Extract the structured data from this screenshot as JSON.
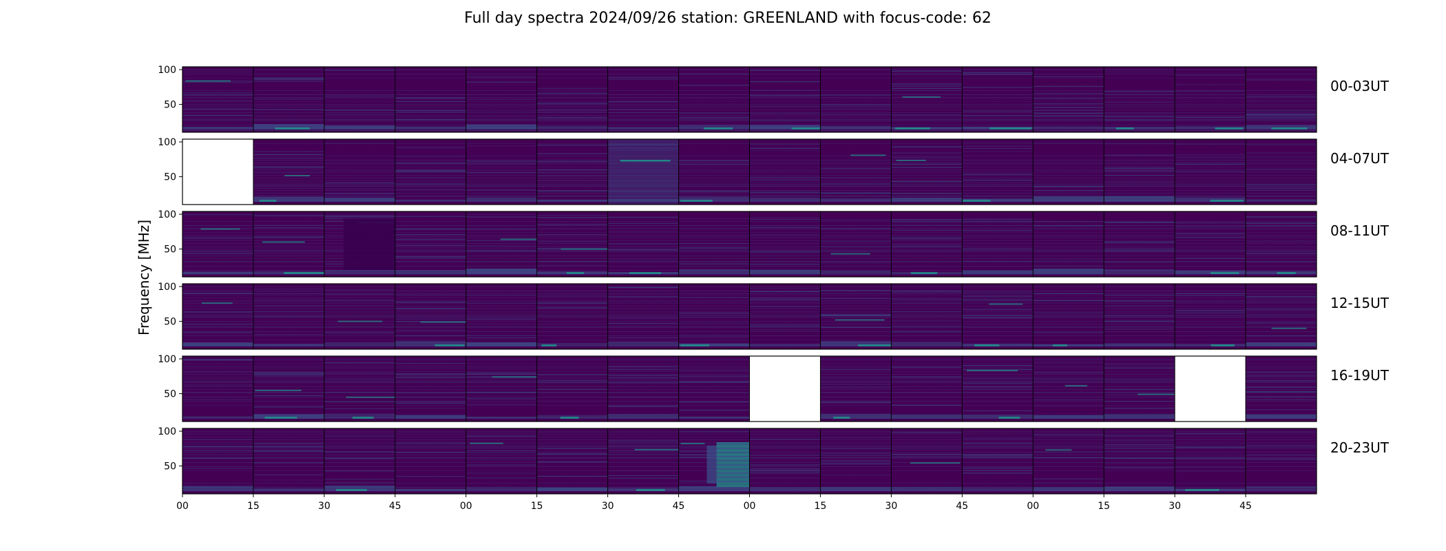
{
  "chart_data": {
    "type": "heatmap",
    "title": "Full day spectra 2024/09/26 station: GREENLAND with focus-code: 62",
    "ylabel": "Frequency [MHz]",
    "xlabel": "",
    "ylim": [
      10,
      104
    ],
    "yticks": [
      50,
      100
    ],
    "xtick_labels": [
      "00",
      "15",
      "30",
      "45",
      "00",
      "15",
      "30",
      "45",
      "00",
      "15",
      "30",
      "45",
      "00",
      "15",
      "30",
      "45"
    ],
    "rows": [
      "00-03UT",
      "04-07UT",
      "08-11UT",
      "12-15UT",
      "16-19UT",
      "20-23UT"
    ],
    "panels_per_row": 16,
    "missing_panels": [
      [
        1,
        0
      ],
      [
        4,
        8
      ],
      [
        4,
        14
      ]
    ],
    "colormap": [
      "#440154",
      "#3b528b",
      "#21918c",
      "#5ec962"
    ],
    "grid": false,
    "legend": "none"
  }
}
